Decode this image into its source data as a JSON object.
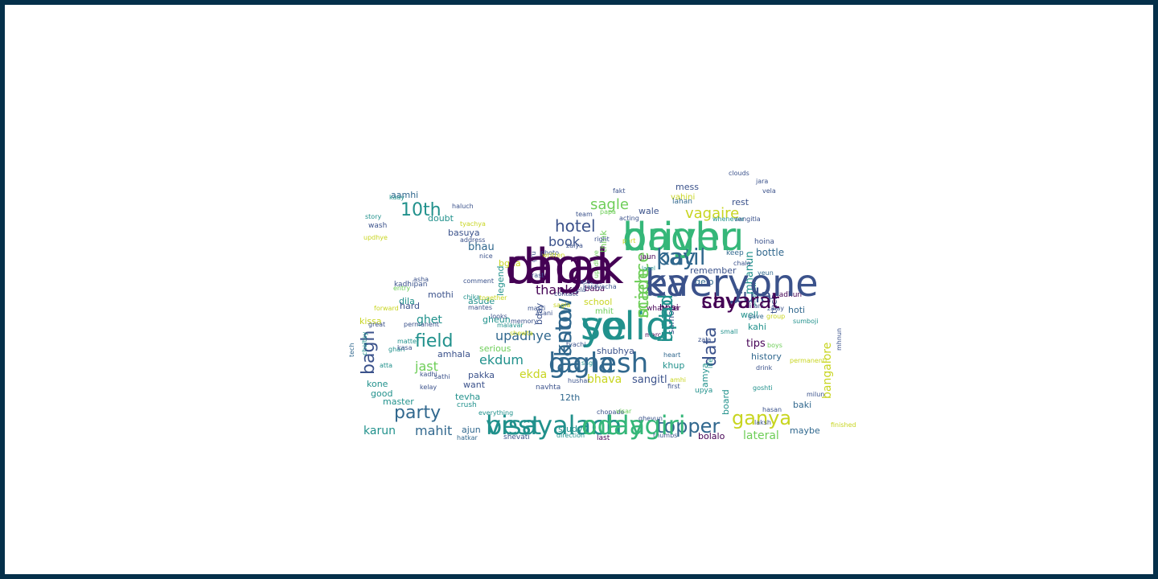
{
  "word_cloud": {
    "colors": {
      "purple": "#440154",
      "indigo": "#3b528b",
      "blue": "#31688e",
      "teal": "#21918c",
      "green": "#35b779",
      "lime": "#6ece58",
      "yellow": "#c8d520",
      "dark_blue": "#2c3e7a"
    },
    "words": [
      "dhak",
      "driver",
      "ka",
      "ye",
      "ganesh",
      "best",
      "mala",
      "chya",
      "patil",
      "know",
      "hoto",
      "science",
      "topper",
      "ganya",
      "party",
      "field",
      "tula",
      "data",
      "bagh",
      "10th",
      "hotel",
      "vagaire",
      "sagle",
      "upadhye",
      "ekdum",
      "bangalore",
      "lateral",
      "thanks",
      "sangitl",
      "book",
      "mahit",
      "jast",
      "karun",
      "ghet",
      "amhala",
      "pakka",
      "ekda",
      "bhava",
      "bhau",
      "mhanun",
      "tips",
      "history",
      "kahi",
      "hoti",
      "bottle",
      "well",
      "12th",
      "shubhya",
      "amya",
      "maybe",
      "bolalo",
      "study",
      "baki",
      "board",
      "mess",
      "vahini",
      "wale",
      "rest",
      "tuch",
      "remember",
      "gelo",
      "bhai",
      "samor",
      "school",
      "mhit",
      "baba",
      "legend",
      "bday",
      "asude",
      "mothi",
      "dila",
      "hard",
      "kissa",
      "basuya",
      "doubt",
      "aamhi",
      "bgha",
      "gheun",
      "serious",
      "want",
      "tevha",
      "good",
      "master",
      "crush",
      "kone",
      "ajun",
      "khup",
      "lahan",
      "jaun",
      "think",
      "whatever",
      "keep",
      "hoina",
      "kadhipan",
      "madhun",
      "navhta",
      "upya",
      "direction",
      "last",
      "hatkar",
      "shevati",
      "chopade",
      "everything",
      "permanent",
      "matter",
      "great",
      "forward",
      "entry",
      "goshti",
      "finished",
      "milun",
      "drink",
      "boys",
      "life",
      "first",
      "heart",
      "march",
      "small",
      "gave",
      "yeun",
      "zalay",
      "group",
      "sirani",
      "fakt",
      "vela",
      "jara",
      "clouds",
      "papa",
      "team",
      "acting",
      "whenever",
      "sangitla",
      "part",
      "right",
      "nice",
      "address",
      "zalya",
      "photo",
      "upadhye",
      "lagel",
      "tech",
      "chaltay",
      "atta",
      "ghari",
      "kasa",
      "kadhi",
      "kelay",
      "sathi",
      "hushar",
      "ghevun",
      "thumbs",
      "amhi",
      "together",
      "mantes",
      "chika",
      "looks",
      "masti",
      "asani",
      "sagla",
      "comment",
      "asha",
      "kaay",
      "story",
      "wash",
      "updhye",
      "haluch",
      "tyachya",
      "gru",
      "rasta",
      "kela",
      "karayacha",
      "written",
      "passage",
      "contact",
      "memory",
      "shewta",
      "malavar",
      "tyachi",
      "sagi",
      "visar",
      "mhnun",
      "permanenti",
      "hasan",
      "laksh",
      "zala",
      "shapath",
      "chala",
      "sumboji",
      "raga",
      "baghu",
      "everyone",
      "solid",
      "lagla",
      "visayalach",
      "odaygiri",
      "savarat",
      "kay",
      "asto",
      "upad",
      "made"
    ]
  }
}
